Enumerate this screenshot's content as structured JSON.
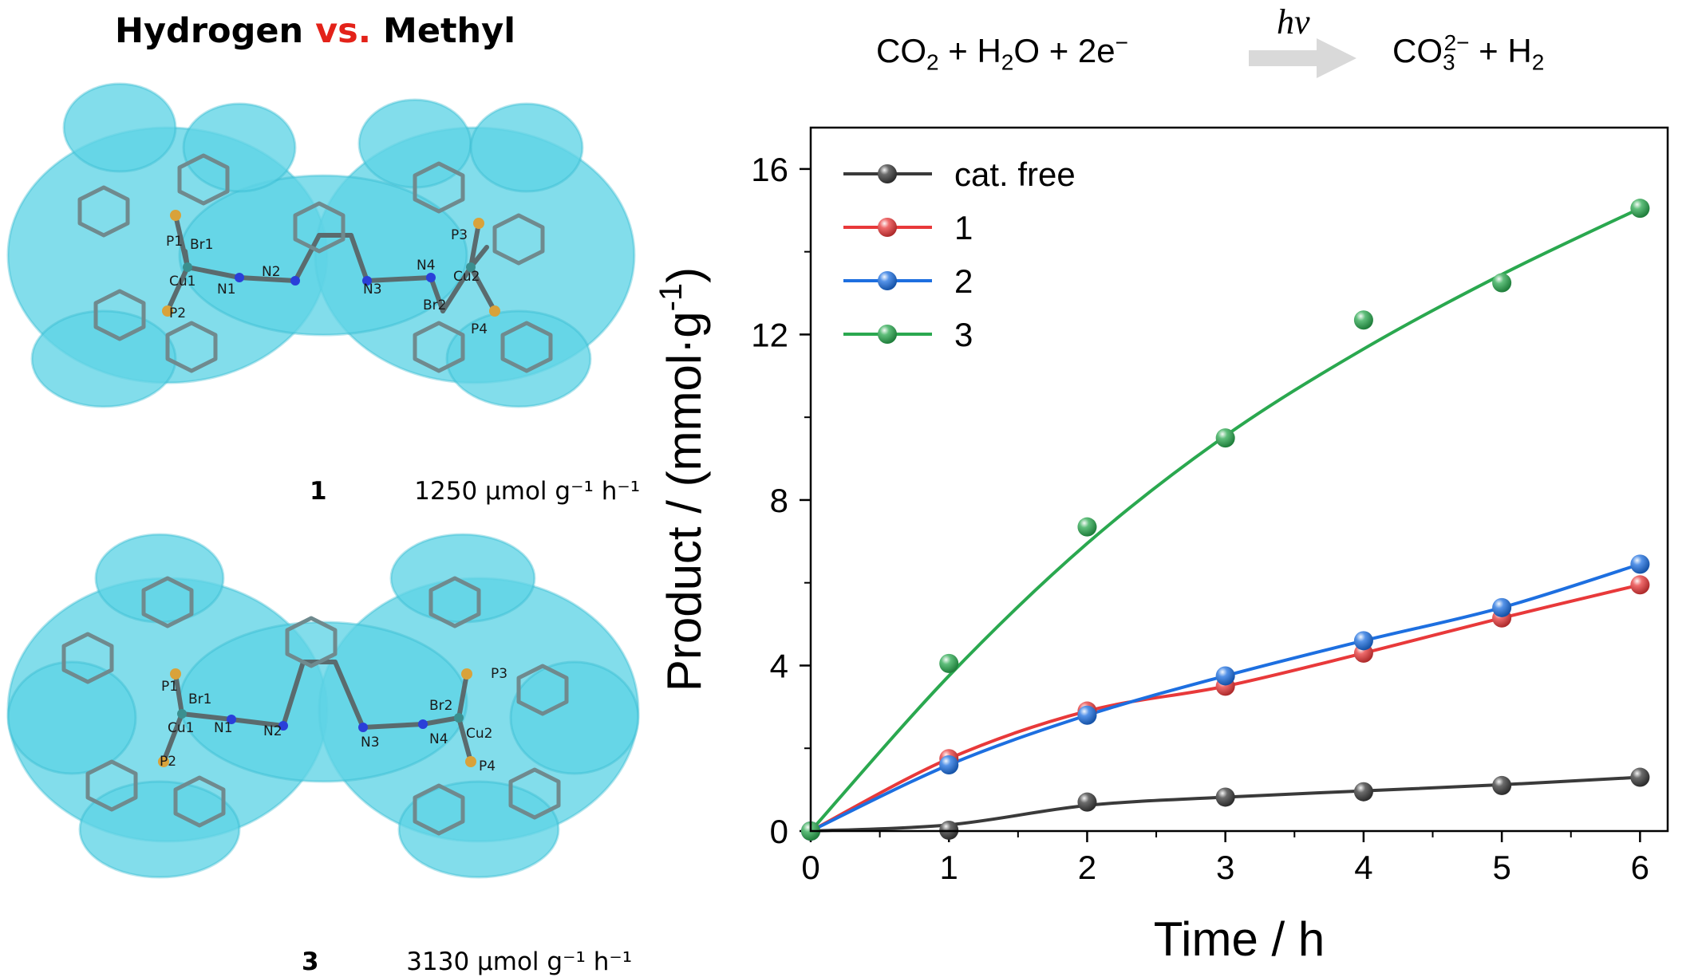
{
  "headline": {
    "part1": "Hydrogen ",
    "part2": "vs.",
    "part3": " Methyl"
  },
  "molecules": [
    {
      "id": "1",
      "rate": "1250 μmol g⁻¹ h⁻¹",
      "atom_labels": [
        "P1",
        "Br1",
        "Cu1",
        "N1",
        "N2",
        "P2",
        "N3",
        "N4",
        "P3",
        "Cu2",
        "Br2",
        "P4"
      ]
    },
    {
      "id": "3",
      "rate": "3130 μmol g⁻¹ h⁻¹",
      "atom_labels": [
        "P1",
        "Br1",
        "Cu1",
        "N1",
        "N2",
        "P2",
        "N3",
        "N4",
        "Br2",
        "P3",
        "Cu2",
        "P4"
      ]
    }
  ],
  "reaction": {
    "left": [
      "CO",
      "2",
      " + H",
      "2",
      "O + 2e",
      "−"
    ],
    "arrow_label": "hv",
    "right": [
      "CO",
      "3",
      "2−",
      " + H",
      "2"
    ],
    "arrow_color": "#d9d9d9"
  },
  "colors": {
    "surface": "#5fd3e6",
    "surface_dark": "#2bb4cc",
    "cat_free": "#3a3a3a",
    "series_1": "#e8393a",
    "series_2": "#1d6fe0",
    "series_3": "#2aa84f"
  },
  "chart_data": {
    "type": "line",
    "title": "",
    "xlabel": "Time / h",
    "ylabel": "Product / (mmol·g",
    "ylabel_sup": "-1",
    "ylabel_close": ")",
    "xlim": [
      0,
      6.2
    ],
    "ylim": [
      0,
      17
    ],
    "xticks": [
      0,
      1,
      2,
      3,
      4,
      5,
      6
    ],
    "yticks": [
      0,
      4,
      8,
      12,
      16
    ],
    "grid": false,
    "legend_position": "top-left",
    "x": [
      0,
      1,
      2,
      3,
      4,
      5,
      6
    ],
    "series": [
      {
        "name": "cat. free",
        "color": "#3a3a3a",
        "values": [
          0,
          0.02,
          0.7,
          0.82,
          0.95,
          1.1,
          1.3
        ],
        "curve": [
          0,
          0.15,
          0.62,
          0.82,
          0.97,
          1.12,
          1.3
        ]
      },
      {
        "name": "1",
        "color": "#e8393a",
        "values": [
          0,
          1.75,
          2.9,
          3.5,
          4.3,
          5.15,
          5.95
        ]
      },
      {
        "name": "2",
        "color": "#1d6fe0",
        "values": [
          0,
          1.6,
          2.8,
          3.75,
          4.6,
          5.4,
          6.45
        ]
      },
      {
        "name": "3",
        "color": "#2aa84f",
        "values": [
          0,
          4.05,
          7.35,
          9.5,
          12.35,
          13.25,
          15.05
        ],
        "curve": [
          0,
          3.75,
          6.95,
          9.55,
          11.65,
          13.45,
          15.05
        ]
      }
    ]
  }
}
